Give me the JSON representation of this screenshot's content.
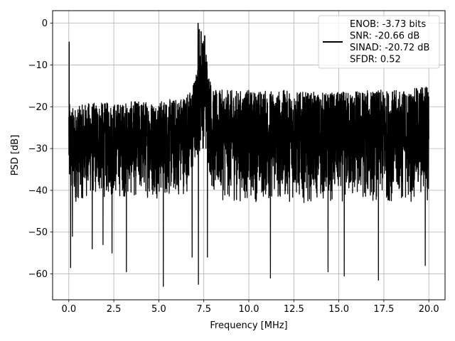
{
  "chart_data": {
    "type": "line",
    "xlabel": "Frequency [MHz]",
    "ylabel": "PSD [dB]",
    "xlim": [
      -0.9,
      20.9
    ],
    "ylim": [
      -66.2,
      3.0
    ],
    "xticks": [
      0.0,
      2.5,
      5.0,
      7.5,
      10.0,
      12.5,
      15.0,
      17.5,
      20.0
    ],
    "xtick_labels": [
      "0.0",
      "2.5",
      "5.0",
      "7.5",
      "10.0",
      "12.5",
      "15.0",
      "17.5",
      "20.0"
    ],
    "yticks": [
      0,
      -10,
      -20,
      -30,
      -40,
      -50,
      -60
    ],
    "ytick_labels": [
      "0",
      "−10",
      "−20",
      "−30",
      "−40",
      "−50",
      "−60"
    ],
    "grid": true,
    "legend_placement": "upper right",
    "legend_lines": [
      "ENOB: -3.73 bits",
      "SNR: -20.66 dB",
      "SINAD: -20.72 dB",
      "SFDR: 0.52"
    ],
    "series": [
      {
        "color": "#000000",
        "x_range": [
          0.0,
          20.0
        ],
        "noise_envelope": {
          "x": [
            0.0,
            0.1,
            0.5,
            1.0,
            2.0,
            3.0,
            4.0,
            5.0,
            6.0,
            6.8,
            7.2,
            7.4,
            7.6,
            7.8,
            8.0,
            9.0,
            10.0,
            11.0,
            12.0,
            13.0,
            14.0,
            15.0,
            16.0,
            17.0,
            18.0,
            19.0,
            20.0
          ],
          "upper": [
            -15,
            -20,
            -20,
            -19,
            -19,
            -19,
            -18.5,
            -18.5,
            -18,
            -16,
            -10,
            -3,
            -5,
            -12,
            -16,
            -16,
            -16,
            -16,
            -16,
            -16.5,
            -16.5,
            -16.5,
            -16,
            -16,
            -16,
            -16,
            -14
          ],
          "lower": [
            -44,
            -44,
            -43,
            -42,
            -42,
            -42,
            -42,
            -42,
            -42,
            -40,
            -32,
            -30,
            -32,
            -36,
            -42,
            -43,
            -43,
            -43,
            -43,
            -43,
            -43,
            -43,
            -43,
            -43,
            -43,
            -43,
            -43
          ]
        },
        "peaks": [
          {
            "x": 0.02,
            "y": -4.5
          },
          {
            "x": 7.18,
            "y": 0.0
          },
          {
            "x": 7.25,
            "y": -1.5
          },
          {
            "x": 7.35,
            "y": -2.0
          },
          {
            "x": 7.45,
            "y": -5.0
          },
          {
            "x": 7.55,
            "y": -3.0
          }
        ],
        "dips": [
          {
            "x": 0.1,
            "y": -58.5
          },
          {
            "x": 0.2,
            "y": -51
          },
          {
            "x": 1.3,
            "y": -54
          },
          {
            "x": 1.9,
            "y": -53
          },
          {
            "x": 2.4,
            "y": -55
          },
          {
            "x": 3.2,
            "y": -59.5
          },
          {
            "x": 5.25,
            "y": -63
          },
          {
            "x": 6.85,
            "y": -56
          },
          {
            "x": 7.2,
            "y": -62.5
          },
          {
            "x": 7.7,
            "y": -56
          },
          {
            "x": 11.2,
            "y": -61
          },
          {
            "x": 14.4,
            "y": -59.5
          },
          {
            "x": 15.3,
            "y": -60.5
          },
          {
            "x": 17.2,
            "y": -61.5
          },
          {
            "x": 19.8,
            "y": -58
          }
        ]
      }
    ]
  }
}
